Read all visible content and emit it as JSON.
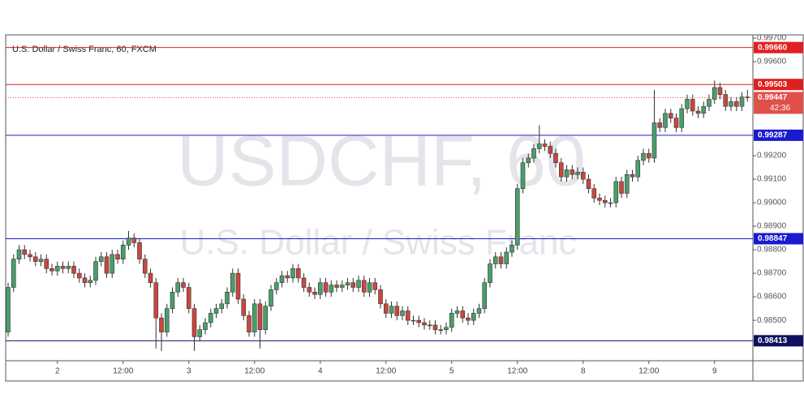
{
  "chart_data": {
    "type": "candlestick",
    "title": "U.S. Dollar / Swiss Franc, 60, FXCM",
    "watermark": "USDCHF, 60",
    "watermark_subtitle": "U.S. Dollar / Swiss Franc",
    "categories": [
      null,
      null,
      null,
      null,
      null,
      null,
      null,
      null,
      null,
      "2",
      null,
      null,
      null,
      null,
      null,
      null,
      null,
      null,
      null,
      null,
      null,
      "12:00",
      null,
      null,
      null,
      null,
      null,
      null,
      null,
      null,
      null,
      null,
      null,
      "3",
      null,
      null,
      null,
      null,
      null,
      null,
      null,
      null,
      null,
      null,
      null,
      "12:00",
      null,
      null,
      null,
      null,
      null,
      null,
      null,
      null,
      null,
      null,
      null,
      "4",
      null,
      null,
      null,
      null,
      null,
      null,
      null,
      null,
      null,
      null,
      null,
      "12:00",
      null,
      null,
      null,
      null,
      null,
      null,
      null,
      null,
      null,
      null,
      null,
      "5",
      null,
      null,
      null,
      null,
      null,
      null,
      null,
      null,
      null,
      null,
      null,
      "12:00",
      null,
      null,
      null,
      null,
      null,
      null,
      null,
      null,
      null,
      null,
      null,
      "8",
      null,
      null,
      null,
      null,
      null,
      null,
      null,
      null,
      null,
      null,
      null,
      "12:00",
      null,
      null,
      null,
      null,
      null,
      null,
      null,
      null,
      null,
      null,
      null,
      "9",
      null,
      null,
      null,
      null,
      null,
      null
    ],
    "open": [
      0.9845,
      0.9864,
      0.9876,
      0.988,
      0.9878,
      0.9877,
      0.9875,
      0.9876,
      0.9872,
      0.9871,
      0.9873,
      0.9872,
      0.9873,
      0.987,
      0.9868,
      0.9866,
      0.9867,
      0.9875,
      0.9877,
      0.987,
      0.9878,
      0.9876,
      0.9882,
      0.9885,
      0.9883,
      0.9876,
      0.987,
      0.9866,
      0.9851,
      0.9845,
      0.9855,
      0.9862,
      0.9866,
      0.9864,
      0.9855,
      0.9843,
      0.9846,
      0.9849,
      0.9853,
      0.9855,
      0.9857,
      0.9862,
      0.987,
      0.9859,
      0.9852,
      0.9845,
      0.9857,
      0.9846,
      0.9856,
      0.9863,
      0.9866,
      0.9869,
      0.9868,
      0.9872,
      0.9868,
      0.9864,
      0.9862,
      0.9861,
      0.9866,
      0.9862,
      0.9865,
      0.9864,
      0.9865,
      0.9866,
      0.9864,
      0.9867,
      0.9862,
      0.9866,
      0.9863,
      0.9857,
      0.9853,
      0.9856,
      0.9852,
      0.9854,
      0.985,
      0.985,
      0.9849,
      0.9848,
      0.9848,
      0.9846,
      0.9846,
      0.9847,
      0.9853,
      0.9854,
      0.9851,
      0.985,
      0.9853,
      0.9855,
      0.9866,
      0.9874,
      0.9877,
      0.9874,
      0.9879,
      0.9882,
      0.9906,
      0.9917,
      0.9919,
      0.9923,
      0.9925,
      0.9924,
      0.9921,
      0.9917,
      0.9911,
      0.9914,
      0.9912,
      0.9913,
      0.991,
      0.9906,
      0.9902,
      0.9901,
      0.99,
      0.99,
      0.9909,
      0.9904,
      0.9912,
      0.9911,
      0.9918,
      0.9921,
      0.9919,
      0.9934,
      0.9932,
      0.9938,
      0.9936,
      0.9932,
      0.994,
      0.9944,
      0.9939,
      0.9938,
      0.9941,
      0.9944,
      0.9949,
      0.9946,
      0.9941,
      0.9943,
      0.9941,
      0.9945
    ],
    "high": [
      0.9866,
      0.9878,
      0.9882,
      0.9882,
      0.988,
      0.9879,
      0.9878,
      0.9878,
      0.9874,
      0.9875,
      0.9875,
      0.9875,
      0.9875,
      0.9872,
      0.987,
      0.9869,
      0.9877,
      0.9879,
      0.9879,
      0.988,
      0.988,
      0.9884,
      0.9888,
      0.9887,
      0.9885,
      0.9878,
      0.9872,
      0.9868,
      0.9853,
      0.9857,
      0.9864,
      0.9868,
      0.9868,
      0.9866,
      0.9857,
      0.9848,
      0.9851,
      0.9855,
      0.9857,
      0.9859,
      0.9864,
      0.9872,
      0.9872,
      0.9861,
      0.9854,
      0.9859,
      0.9859,
      0.9858,
      0.9865,
      0.9868,
      0.9871,
      0.9871,
      0.9874,
      0.9874,
      0.987,
      0.9866,
      0.9864,
      0.9868,
      0.9868,
      0.9867,
      0.9867,
      0.9867,
      0.9868,
      0.9868,
      0.9869,
      0.9869,
      0.9868,
      0.9868,
      0.9865,
      0.9859,
      0.9858,
      0.9858,
      0.9856,
      0.9856,
      0.9852,
      0.9852,
      0.9851,
      0.985,
      0.985,
      0.9848,
      0.9849,
      0.9855,
      0.9856,
      0.9856,
      0.9853,
      0.9855,
      0.9857,
      0.9868,
      0.9876,
      0.9879,
      0.9879,
      0.9881,
      0.9884,
      0.9908,
      0.9919,
      0.9921,
      0.9925,
      0.9933,
      0.9927,
      0.9926,
      0.9923,
      0.9919,
      0.9916,
      0.9916,
      0.9915,
      0.9915,
      0.9912,
      0.9908,
      0.9904,
      0.9903,
      0.9902,
      0.9911,
      0.9911,
      0.9914,
      0.9914,
      0.992,
      0.9923,
      0.9923,
      0.9948,
      0.9936,
      0.994,
      0.994,
      0.9938,
      0.9942,
      0.9946,
      0.9946,
      0.9941,
      0.9943,
      0.9946,
      0.9952,
      0.9951,
      0.9948,
      0.9945,
      0.9945,
      0.9947,
      0.9948
    ],
    "low": [
      0.9843,
      0.9862,
      0.9874,
      0.9876,
      0.9875,
      0.9873,
      0.9873,
      0.987,
      0.9869,
      0.9869,
      0.987,
      0.987,
      0.9868,
      0.9866,
      0.9864,
      0.9864,
      0.9865,
      0.9873,
      0.9868,
      0.9868,
      0.9874,
      0.9874,
      0.988,
      0.9881,
      0.9874,
      0.9868,
      0.9864,
      0.9838,
      0.9837,
      0.9843,
      0.9853,
      0.986,
      0.9862,
      0.9853,
      0.9837,
      0.9841,
      0.9844,
      0.9847,
      0.9851,
      0.9853,
      0.9855,
      0.986,
      0.9857,
      0.985,
      0.9843,
      0.9843,
      0.9838,
      0.9844,
      0.9854,
      0.9861,
      0.9864,
      0.9866,
      0.9866,
      0.9866,
      0.9862,
      0.986,
      0.9859,
      0.9859,
      0.986,
      0.986,
      0.9862,
      0.9862,
      0.9863,
      0.9862,
      0.9862,
      0.986,
      0.986,
      0.9861,
      0.9855,
      0.9851,
      0.9851,
      0.985,
      0.985,
      0.9848,
      0.9848,
      0.9847,
      0.9846,
      0.9846,
      0.9844,
      0.9844,
      0.9844,
      0.9845,
      0.9851,
      0.9849,
      0.9848,
      0.9848,
      0.9851,
      0.9853,
      0.9864,
      0.9872,
      0.9872,
      0.9872,
      0.9877,
      0.988,
      0.9904,
      0.9915,
      0.9917,
      0.9921,
      0.9922,
      0.9919,
      0.9915,
      0.9909,
      0.9909,
      0.991,
      0.991,
      0.9908,
      0.9904,
      0.99,
      0.9899,
      0.9898,
      0.9898,
      0.9898,
      0.9902,
      0.9902,
      0.9909,
      0.9909,
      0.9916,
      0.9917,
      0.9917,
      0.993,
      0.993,
      0.9934,
      0.993,
      0.993,
      0.9938,
      0.9937,
      0.9936,
      0.9936,
      0.9939,
      0.9942,
      0.9944,
      0.9939,
      0.9939,
      0.9939,
      0.9939,
      0.9943
    ],
    "close": [
      0.9864,
      0.9876,
      0.988,
      0.9878,
      0.9877,
      0.9875,
      0.9876,
      0.9872,
      0.9871,
      0.9873,
      0.9872,
      0.9873,
      0.987,
      0.9868,
      0.9866,
      0.9867,
      0.9875,
      0.9877,
      0.987,
      0.9878,
      0.9876,
      0.9882,
      0.9885,
      0.9883,
      0.9876,
      0.987,
      0.9866,
      0.9851,
      0.9845,
      0.9855,
      0.9862,
      0.9866,
      0.9864,
      0.9855,
      0.9843,
      0.9846,
      0.9849,
      0.9853,
      0.9855,
      0.9857,
      0.9862,
      0.987,
      0.9859,
      0.9852,
      0.9845,
      0.9857,
      0.9846,
      0.9856,
      0.9863,
      0.9866,
      0.9869,
      0.9868,
      0.9872,
      0.9868,
      0.9864,
      0.9862,
      0.9861,
      0.9866,
      0.9862,
      0.9865,
      0.9864,
      0.9865,
      0.9866,
      0.9864,
      0.9867,
      0.9862,
      0.9866,
      0.9863,
      0.9857,
      0.9853,
      0.9856,
      0.9852,
      0.9854,
      0.985,
      0.985,
      0.9849,
      0.9848,
      0.9848,
      0.9846,
      0.9846,
      0.9847,
      0.9853,
      0.9854,
      0.9851,
      0.985,
      0.9853,
      0.9855,
      0.9866,
      0.9874,
      0.9877,
      0.9874,
      0.9879,
      0.9882,
      0.9906,
      0.9917,
      0.9919,
      0.9923,
      0.9925,
      0.9924,
      0.9921,
      0.9917,
      0.9911,
      0.9914,
      0.9912,
      0.9913,
      0.991,
      0.9906,
      0.9902,
      0.9901,
      0.99,
      0.99,
      0.9909,
      0.9904,
      0.9912,
      0.9911,
      0.9918,
      0.9921,
      0.9919,
      0.9934,
      0.9932,
      0.9938,
      0.9936,
      0.9932,
      0.994,
      0.9944,
      0.9939,
      0.9938,
      0.9941,
      0.9944,
      0.9949,
      0.9946,
      0.9941,
      0.9943,
      0.9941,
      0.9945,
      0.99447
    ],
    "up_color": "#4a9e6b",
    "down_color": "#c9473f",
    "ylim": [
      0.98328,
      0.99714
    ],
    "yticks": [
      {
        "value": 0.997,
        "label": "0.99700"
      },
      {
        "value": 0.996,
        "label": "0.99600"
      },
      {
        "value": 0.992,
        "label": "0.99200"
      },
      {
        "value": 0.991,
        "label": "0.99100"
      },
      {
        "value": 0.99,
        "label": "0.99000"
      },
      {
        "value": 0.989,
        "label": "0.98900"
      },
      {
        "value": 0.988,
        "label": "0.98800"
      },
      {
        "value": 0.987,
        "label": "0.98700"
      },
      {
        "value": 0.986,
        "label": "0.98600"
      },
      {
        "value": 0.985,
        "label": "0.98500"
      }
    ],
    "grid": false,
    "levels": [
      {
        "value": 0.9966,
        "label": "0.99660",
        "color": "#e02020"
      },
      {
        "value": 0.99503,
        "label": "0.99503",
        "color": "#e02020"
      },
      {
        "value": 0.99287,
        "label": "0.99287",
        "color": "#1a1ad0"
      },
      {
        "value": 0.98847,
        "label": "0.98847",
        "color": "#1a1ad0"
      },
      {
        "value": 0.98413,
        "label": "0.98413",
        "color": "#101060"
      }
    ],
    "last_price": {
      "value": 0.99447,
      "label": "0.99447",
      "countdown": "42:36",
      "color": "#e0504a"
    }
  }
}
